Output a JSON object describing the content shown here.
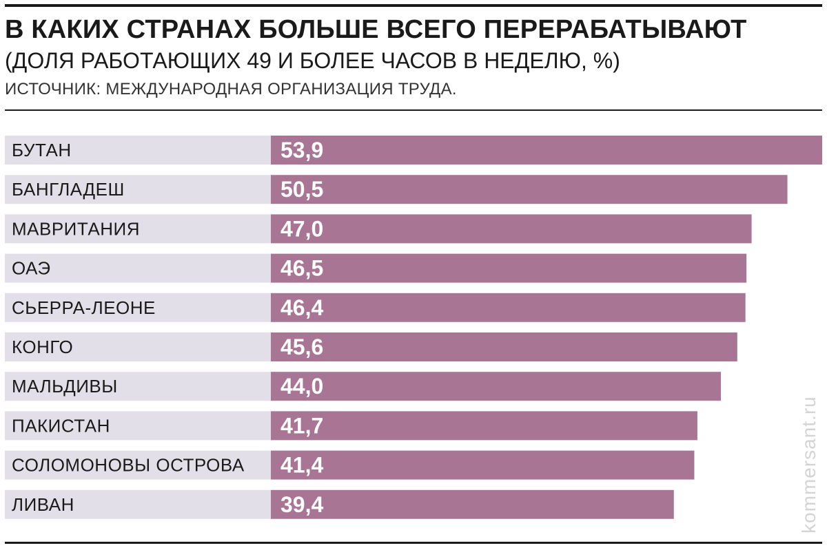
{
  "header": {
    "title": "В КАКИХ СТРАНАХ БОЛЬШЕ ВСЕГО ПЕРЕРАБАТЫВАЮТ",
    "subtitle": "(ДОЛЯ РАБОТАЮЩИХ 49 И БОЛЕЕ ЧАСОВ В НЕДЕЛЮ, %)",
    "source": "ИСТОЧНИК: МЕЖДУНАРОДНАЯ ОРГАНИЗАЦИЯ ТРУДА."
  },
  "watermark": "kommersant.ru",
  "colors": {
    "bar": "#a87594",
    "label_background": "#e3dfe8"
  },
  "chart_data": {
    "type": "bar",
    "orientation": "horizontal",
    "title": "В КАКИХ СТРАНАХ БОЛЬШЕ ВСЕГО ПЕРЕРАБАТЫВАЮТ",
    "subtitle": "(ДОЛЯ РАБОТАЮЩИХ 49 И БОЛЕЕ ЧАСОВ В НЕДЕЛЮ, %)",
    "categories": [
      "БУТАН",
      "БАНГЛАДЕШ",
      "МАВРИТАНИЯ",
      "ОАЭ",
      "СЬЕРРА-ЛЕОНЕ",
      "КОНГО",
      "МАЛЬДИВЫ",
      "ПАКИСТАН",
      "СОЛОМОНОВЫ ОСТРОВА",
      "ЛИВАН"
    ],
    "values": [
      53.9,
      50.5,
      47.0,
      46.5,
      46.4,
      45.6,
      44.0,
      41.7,
      41.4,
      39.4
    ],
    "value_labels": [
      "53,9",
      "50,5",
      "47,0",
      "46,5",
      "46,4",
      "45,6",
      "44,0",
      "41,7",
      "41,4",
      "39,4"
    ],
    "xlim": [
      0,
      53.9
    ],
    "grid": false,
    "legend": "none"
  }
}
